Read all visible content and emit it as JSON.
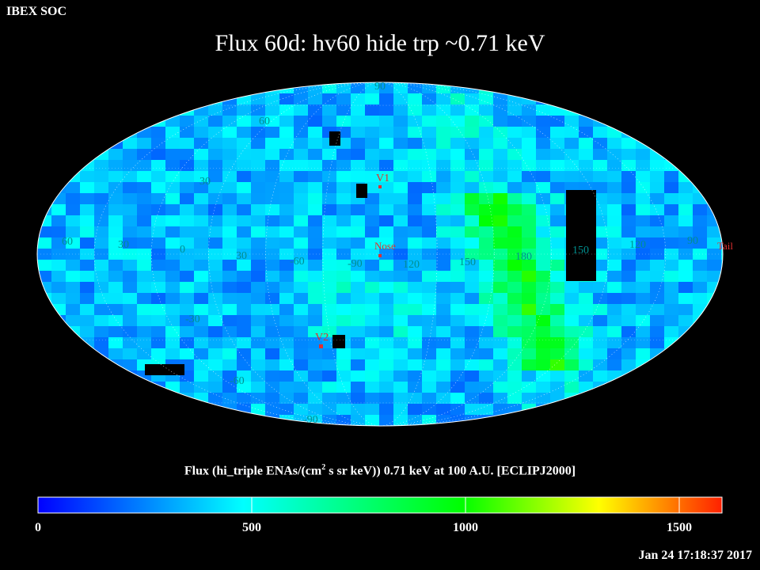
{
  "header": {
    "soc_label": "IBEX SOC",
    "title": "Flux   60d: hv60 hide trp ~0.71 keV"
  },
  "map": {
    "projection": "aitoff",
    "lat_labels": [
      {
        "text": "90",
        "color": "#008f8f"
      },
      {
        "text": "60",
        "color": "#008f8f"
      },
      {
        "text": "30",
        "color": "#008f8f"
      },
      {
        "text": "0",
        "color": "#008f8f"
      },
      {
        "text": "-30",
        "color": "#008f8f"
      },
      {
        "text": "-60",
        "color": "#008f8f"
      },
      {
        "text": "-90",
        "color": "#008f8f"
      }
    ],
    "lon_labels": [
      "60",
      "30",
      "0",
      "30",
      "-60",
      "-90",
      "120",
      "150",
      "180",
      "150",
      "120",
      "90"
    ],
    "markers": {
      "v1": "V1",
      "nose": "Nose",
      "v2": "V2",
      "tail": "Tail"
    },
    "marker_color": "#e03030",
    "label_color": "#008f8f"
  },
  "colorbar": {
    "label_prefix": "Flux (hi_triple ENAs/(cm",
    "label_sup": "2",
    "label_suffix": " s sr keV))  0.71 keV at 100 A.U. [ECLIPJ2000]",
    "ticks": [
      "0",
      "500",
      "1000",
      "1500"
    ],
    "range": [
      0,
      1600
    ],
    "colors": [
      "#0000ff",
      "#00ffff",
      "#00ff00",
      "#ffff00",
      "#ff0000"
    ]
  },
  "footer": {
    "timestamp": "Jan 24 17:18:37 2017"
  }
}
